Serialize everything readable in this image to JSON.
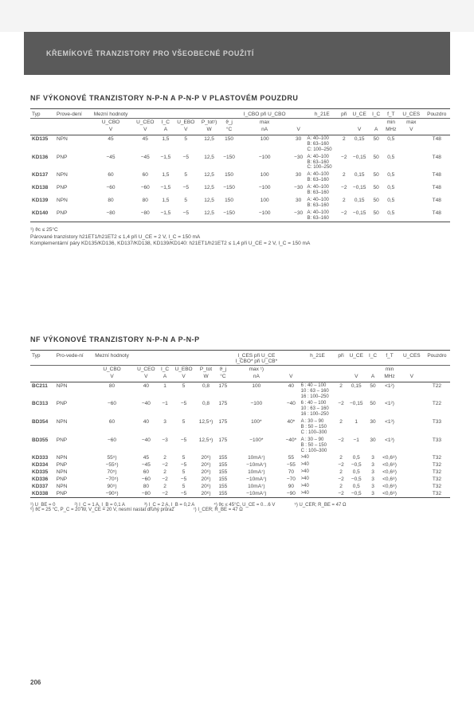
{
  "banner": "KŘEMÍKOVÉ TRANZISTORY PRO VŠEOBECNÉ POUŽITÍ",
  "section1_title": "NF VÝKONOVÉ TRANZISTORY N-P-N A P-N-P V PLASTOVÉM POUZDRU",
  "t1": {
    "headers1": [
      "Typ",
      "Prove-dení",
      "Mezní hodnoty",
      "",
      "",
      "",
      "",
      "",
      "I_CBO při U_CBO",
      "",
      "h_21E",
      "při",
      "U_CE",
      "I_C",
      "f_T",
      "U_CES",
      "Pouzdro"
    ],
    "headers2": [
      "",
      "",
      "U_CBO",
      "U_CEO",
      "I_C",
      "U_EBO",
      "P_tot¹)",
      "ϑ_j",
      "max",
      "",
      "",
      "",
      "",
      "",
      "min",
      "max",
      ""
    ],
    "headers3": [
      "",
      "",
      "V",
      "V",
      "A",
      "V",
      "W",
      "°C",
      "nA",
      "V",
      "",
      "",
      "V",
      "A",
      "MHz",
      "V",
      ""
    ],
    "rows": [
      {
        "type": "KD135",
        "pol": "NPN",
        "ucbo": "45",
        "uceo": "45",
        "ic": "1,5",
        "uebo": "5",
        "ptot": "12,5",
        "tj": "150",
        "icbo": "100",
        "vat": "30",
        "h21e": "A: 40–100\nB: 63–160\nC: 100–250",
        "pri": "2",
        "uce": "0,15",
        "icm": "50",
        "ft": "0,5",
        "uces": "",
        "pkg": "T48"
      },
      {
        "type": "KD136",
        "pol": "PNP",
        "ucbo": "−45",
        "uceo": "−45",
        "ic": "−1,5",
        "uebo": "−5",
        "ptot": "12,5",
        "tj": "−150",
        "icbo": "−100",
        "vat": "−30",
        "h21e": "A: 40–100\nB: 63–160\nC: 100–250",
        "pri": "−2",
        "uce": "−0,15",
        "icm": "50",
        "ft": "0,5",
        "uces": "",
        "pkg": "T48"
      },
      {
        "type": "KD137",
        "pol": "NPN",
        "ucbo": "60",
        "uceo": "60",
        "ic": "1,5",
        "uebo": "5",
        "ptot": "12,5",
        "tj": "150",
        "icbo": "100",
        "vat": "30",
        "h21e": "A: 40–100\nB: 63–160",
        "pri": "2",
        "uce": "0,15",
        "icm": "50",
        "ft": "0,5",
        "uces": "",
        "pkg": "T48"
      },
      {
        "type": "KD138",
        "pol": "PNP",
        "ucbo": "−60",
        "uceo": "−60",
        "ic": "−1,5",
        "uebo": "−5",
        "ptot": "12,5",
        "tj": "−150",
        "icbo": "−100",
        "vat": "−30",
        "h21e": "A: 40–100\nB: 63–160",
        "pri": "−2",
        "uce": "−0,15",
        "icm": "50",
        "ft": "0,5",
        "uces": "",
        "pkg": "T48"
      },
      {
        "type": "KD139",
        "pol": "NPN",
        "ucbo": "80",
        "uceo": "80",
        "ic": "1,5",
        "uebo": "5",
        "ptot": "12,5",
        "tj": "150",
        "icbo": "100",
        "vat": "30",
        "h21e": "A: 40–100\nB: 63–160",
        "pri": "2",
        "uce": "0,15",
        "icm": "50",
        "ft": "0,5",
        "uces": "",
        "pkg": "T48"
      },
      {
        "type": "KD140",
        "pol": "PNP",
        "ucbo": "−80",
        "uceo": "−80",
        "ic": "−1,5",
        "uebo": "−5",
        "ptot": "12,5",
        "tj": "−150",
        "icbo": "−100",
        "vat": "−30",
        "h21e": "A: 40–100\nB: 63–160",
        "pri": "−2",
        "uce": "−0,15",
        "icm": "50",
        "ft": "0,5",
        "uces": "",
        "pkg": "T48"
      }
    ]
  },
  "notes1_a": "¹) ϑc ≤ 25°C",
  "notes1_b": "Párované tranzistory h21ET1/h21ET2 ≤ 1,4 při U_CE = 2 V, I_C = 150 mA",
  "notes1_c": "Komplementární páry KD135/KD136, KD137/KD138, KD139/KD140: h21ET1/h21ET2 ≤ 1,4 při U_CE = 2 V, I_C = 150 mA",
  "section2_title": "NF VÝKONOVÉ TRANZISTORY N-P-N A P-N-P",
  "t2": {
    "headers1": [
      "Typ",
      "Pro-vede-ní",
      "Mezní hodnoty",
      "",
      "",
      "",
      "",
      "",
      "I_CES při U_CE\nI_CBO* při U_CB*",
      "",
      "h_21E",
      "při",
      "U_CE",
      "I_C",
      "f_T",
      "U_CES",
      "Pouzdro"
    ],
    "headers2": [
      "",
      "",
      "U_CBO",
      "U_CEO",
      "I_C",
      "U_EBO",
      "P_tot",
      "ϑ_j",
      "max ¹)",
      "",
      "",
      "",
      "",
      "",
      "min",
      "",
      ""
    ],
    "headers3": [
      "",
      "",
      "V",
      "V",
      "A",
      "V",
      "W",
      "°C",
      "nA",
      "V",
      "",
      "",
      "V",
      "A",
      "MHz",
      "V",
      ""
    ],
    "rows": [
      {
        "type": "BC211",
        "pol": "NPN",
        "ucbo": "80",
        "uceo": "40",
        "ic": "1",
        "uebo": "5",
        "ptot": "0,8",
        "tj": "175",
        "ices": "100",
        "vat": "40",
        "h21e": "6 : 40 – 100\n10 : 63 – 160\n16 : 100–250",
        "pri": "2",
        "uce": "0,15",
        "icm": "50",
        "ft": "<1²)",
        "uces": "",
        "pkg": "T22"
      },
      {
        "type": "BC313",
        "pol": "PNP",
        "ucbo": "−60",
        "uceo": "−40",
        "ic": "−1",
        "uebo": "−5",
        "ptot": "0,8",
        "tj": "175",
        "ices": "−100",
        "vat": "−40",
        "h21e": "6 : 40 – 100\n10 : 63 – 160\n16 : 100–250",
        "pri": "−2",
        "uce": "−0,15",
        "icm": "50",
        "ft": "<1²)",
        "uces": "",
        "pkg": "T22"
      },
      {
        "type": "BD354",
        "pol": "NPN",
        "ucbo": "60",
        "uceo": "40",
        "ic": "3",
        "uebo": "5",
        "ptot": "12,5⁴)",
        "tj": "175",
        "ices": "100*",
        "vat": "40*",
        "h21e": "A : 30 – 90\nB : 50 – 150\nC : 100–300",
        "pri": "2",
        "uce": "1",
        "icm": "30",
        "ft": "<1³)",
        "uces": "",
        "pkg": "T33"
      },
      {
        "type": "BD355",
        "pol": "PNP",
        "ucbo": "−60",
        "uceo": "−40",
        "ic": "−3",
        "uebo": "−5",
        "ptot": "12,5⁴)",
        "tj": "175",
        "ices": "−100*",
        "vat": "−40*",
        "h21e": "A : 30 – 90\nB : 50 – 150\nC : 100–300",
        "pri": "−2",
        "uce": "−1",
        "icm": "30",
        "ft": "<1³)",
        "uces": "",
        "pkg": "T33"
      },
      {
        "type": "KD333",
        "pol": "NPN",
        "ucbo": "55⁵)",
        "uceo": "45",
        "ic": "2",
        "uebo": "5",
        "ptot": "20⁶)",
        "tj": "155",
        "ices": "10mA⁷)",
        "vat": "55",
        "h21e": ">40",
        "pri": "2",
        "uce": "0,5",
        "icm": "3",
        "ft": "<0,6⁸)",
        "uces": "",
        "pkg": "T32"
      },
      {
        "type": "KD334",
        "pol": "PNP",
        "ucbo": "−55⁵)",
        "uceo": "−45",
        "ic": "−2",
        "uebo": "−5",
        "ptot": "20⁶)",
        "tj": "155",
        "ices": "−10mA⁷)",
        "vat": "−55",
        "h21e": ">40",
        "pri": "−2",
        "uce": "−0,5",
        "icm": "3",
        "ft": "<0,6⁸)",
        "uces": "",
        "pkg": "T32"
      },
      {
        "type": "KD335",
        "pol": "NPN",
        "ucbo": "70⁵)",
        "uceo": "60",
        "ic": "2",
        "uebo": "5",
        "ptot": "20⁶)",
        "tj": "155",
        "ices": "10mA⁷)",
        "vat": "70",
        "h21e": ">40",
        "pri": "2",
        "uce": "0,5",
        "icm": "3",
        "ft": "<0,6⁸)",
        "uces": "",
        "pkg": "T32"
      },
      {
        "type": "KD336",
        "pol": "PNP",
        "ucbo": "−70⁵)",
        "uceo": "−60",
        "ic": "−2",
        "uebo": "−5",
        "ptot": "20⁶)",
        "tj": "155",
        "ices": "−10mA⁷)",
        "vat": "−70",
        "h21e": ">40",
        "pri": "−2",
        "uce": "−0,5",
        "icm": "3",
        "ft": "<0,6⁸)",
        "uces": "",
        "pkg": "T32"
      },
      {
        "type": "KD337",
        "pol": "NPN",
        "ucbo": "90⁵)",
        "uceo": "80",
        "ic": "2",
        "uebo": "5",
        "ptot": "20⁶)",
        "tj": "155",
        "ices": "10mA⁷)",
        "vat": "90",
        "h21e": ">40",
        "pri": "2",
        "uce": "0,5",
        "icm": "3",
        "ft": "<0,6⁸)",
        "uces": "",
        "pkg": "T32"
      },
      {
        "type": "KD338",
        "pol": "PNP",
        "ucbo": "−90⁵)",
        "uceo": "−80",
        "ic": "−2",
        "uebo": "−5",
        "ptot": "20⁶)",
        "tj": "155",
        "ices": "−10mA⁷)",
        "vat": "−90",
        "h21e": ">40",
        "pri": "−2",
        "uce": "−0,5",
        "icm": "3",
        "ft": "<0,6⁸)",
        "uces": "",
        "pkg": "T32"
      }
    ]
  },
  "footnotes2": [
    "¹) U_BE = 0",
    "²) I_C = 1 A, I_B = 0,1 A",
    "³) I_C = 2 A, I_B = 0,2 A",
    "⁴) ϑc ≤ 45°C, U_CE = 0…6 V",
    "⁵) U_CER; R_BE = 47 Ω",
    "⁶) ϑc = 25 °C, P_C = 20 W, V_CE = 20 V, nesmí nastat druhý průraz",
    "⁷) I_CER; R_BE = 47 Ω"
  ],
  "pagenum": "206"
}
